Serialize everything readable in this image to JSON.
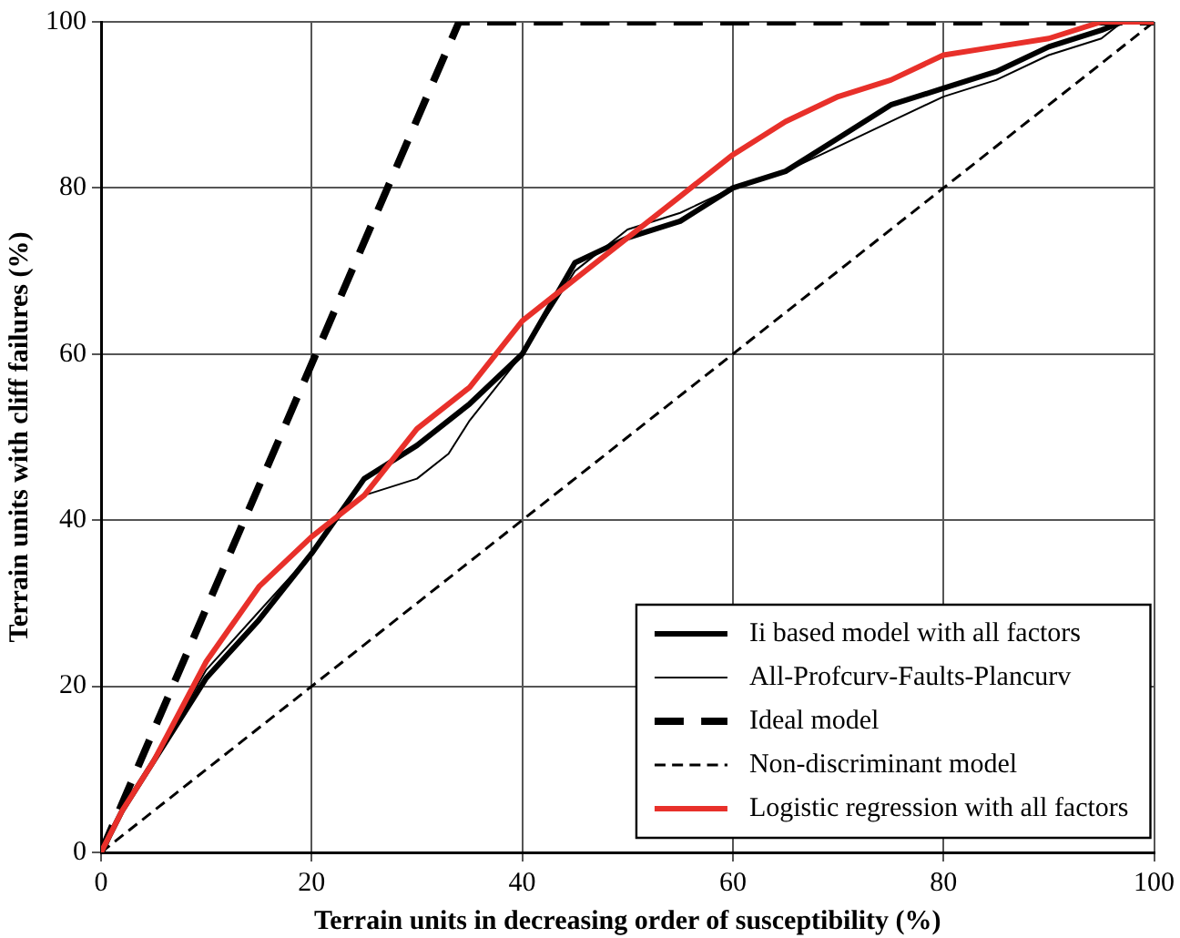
{
  "chart_data": {
    "type": "line",
    "xlabel": "Terrain units in decreasing order of susceptibility (%)",
    "ylabel": "Terrain units with cliff failures (%)",
    "xlim": [
      0,
      100
    ],
    "ylim": [
      0,
      100
    ],
    "xticks": [
      0,
      20,
      40,
      60,
      80,
      100
    ],
    "yticks": [
      0,
      20,
      40,
      60,
      80,
      100
    ],
    "grid": true,
    "legend": "bottom right",
    "marker": "none",
    "series": [
      {
        "name": "Ii based model with all factors",
        "color": "#000000",
        "line_style": "solid",
        "x": [
          0,
          2,
          5,
          10,
          15,
          20,
          25,
          30,
          35,
          40,
          45,
          50,
          55,
          60,
          65,
          70,
          75,
          80,
          85,
          90,
          95,
          97,
          100
        ],
        "values": [
          0,
          5,
          11,
          21,
          28,
          36,
          45,
          49,
          54,
          60,
          71,
          74,
          76,
          80,
          82,
          86,
          90,
          92,
          94,
          97,
          99,
          100,
          100
        ]
      },
      {
        "name": "All-Profcurv-Faults-Plancurv",
        "color": "#000000",
        "line_style": "solid",
        "x": [
          0,
          2,
          5,
          10,
          15,
          20,
          22,
          25,
          30,
          33,
          35,
          40,
          45,
          50,
          55,
          60,
          65,
          70,
          75,
          80,
          85,
          90,
          95,
          97,
          100
        ],
        "values": [
          0,
          5,
          11,
          22,
          29,
          36,
          40,
          43,
          45,
          48,
          52,
          60,
          70,
          75,
          77,
          80,
          82,
          85,
          88,
          91,
          93,
          96,
          98,
          100,
          100
        ]
      },
      {
        "name": "Ideal model",
        "color": "#000000",
        "line_style": "dashed",
        "x": [
          0,
          34,
          100
        ],
        "values": [
          0,
          100,
          100
        ]
      },
      {
        "name": "Non-discriminant model",
        "color": "#000000",
        "line_style": "dashed",
        "x": [
          0,
          100
        ],
        "values": [
          0,
          100
        ]
      },
      {
        "name": "Logistic regression with all factors",
        "color": "#e8302a",
        "line_style": "solid",
        "x": [
          0,
          2,
          5,
          10,
          15,
          20,
          25,
          30,
          35,
          40,
          45,
          50,
          55,
          60,
          65,
          70,
          75,
          80,
          85,
          90,
          95,
          100
        ],
        "values": [
          0,
          5,
          11,
          23,
          32,
          38,
          43,
          51,
          56,
          64,
          69,
          74,
          79,
          84,
          88,
          91,
          93,
          96,
          97,
          98,
          100,
          100
        ]
      }
    ]
  }
}
